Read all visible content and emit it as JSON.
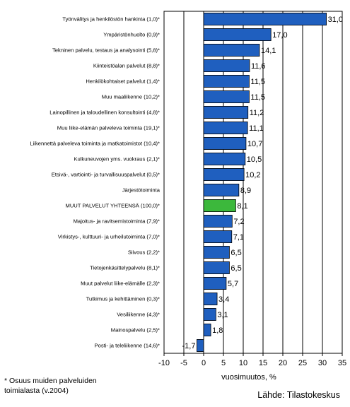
{
  "chart_data": {
    "type": "bar",
    "orientation": "horizontal",
    "xlabel": "vuosimuutos, %",
    "xlim": [
      -10,
      35
    ],
    "xticks": [
      -10,
      -5,
      0,
      5,
      10,
      15,
      20,
      25,
      30,
      35
    ],
    "xtick_labels": [
      "-10",
      "-5",
      "0",
      "5",
      "10",
      "15",
      "20",
      "25",
      "30",
      "35"
    ],
    "grid": "vertical",
    "categories": [
      "Työnvälitys ja henkilöstön hankinta (1,0)*",
      "Ympäristönhuolto (0,9)*",
      "Tekninen palvelu, testaus ja analysointi (5,8)*",
      "Kiinteistöalan palvelut (8,8)*",
      "Henkilökohtaiset palvelut (1,4)*",
      "Muu maaliikenne (10,2)*",
      "Lainopillinen ja taloudellinen konsultointi (4,8)*",
      "Muu liike-elämän palveleva toiminta (19,1)*",
      "Liikennettä palveleva toiminta ja matkatoimistot (10,4)*",
      "Kulkuneuvojen yms. vuokraus (2,1)*",
      "Etsivä-, vartiointi- ja turvallisuuspalvelut (0,5)*",
      "Järjestötoiminta",
      "MUUT PALVELUT YHTEENSÄ (100,0)*",
      "Majoitus- ja ravitsemistoiminta (7,9)*",
      "Virkistys-, kulttuuri- ja urheilutoiminta (7,0)*",
      "Siivous (2,2)*",
      "Tietojenkäsittelypalvelu (8,1)*",
      "Muut palvelut liike-elämälle (2,3)*",
      "Tutkimus ja kehittäminen (0,3)*",
      "Vesiliikenne (4,3)*",
      "Mainospalvelu (2,5)*",
      "Posti- ja teleliikenne (14,6)*"
    ],
    "values": [
      31.0,
      17.0,
      14.1,
      11.6,
      11.5,
      11.5,
      11.2,
      11.1,
      10.7,
      10.5,
      10.2,
      8.9,
      8.1,
      7.2,
      7.1,
      6.5,
      6.5,
      5.7,
      3.4,
      3.1,
      1.8,
      -1.7
    ],
    "value_labels": [
      "31,0",
      "17,0",
      "14,1",
      "11,6",
      "11,5",
      "11,5",
      "11,2",
      "11,1",
      "10,7",
      "10,5",
      "10,2",
      "8,9",
      "8,1",
      "7,2",
      "7,1",
      "6,5",
      "6,5",
      "5,7",
      "3,4",
      "3,1",
      "1,8",
      "-1,7"
    ],
    "highlight_index": 12
  },
  "colors": {
    "bar": "#1f5fbf",
    "highlight": "#3cb83c",
    "grid": "#000000"
  },
  "footnote": {
    "line1": "* Osuus muiden palveluiden",
    "line2": "toimialasta (v.2004)"
  },
  "source": "Lähde: Tilastokeskus"
}
